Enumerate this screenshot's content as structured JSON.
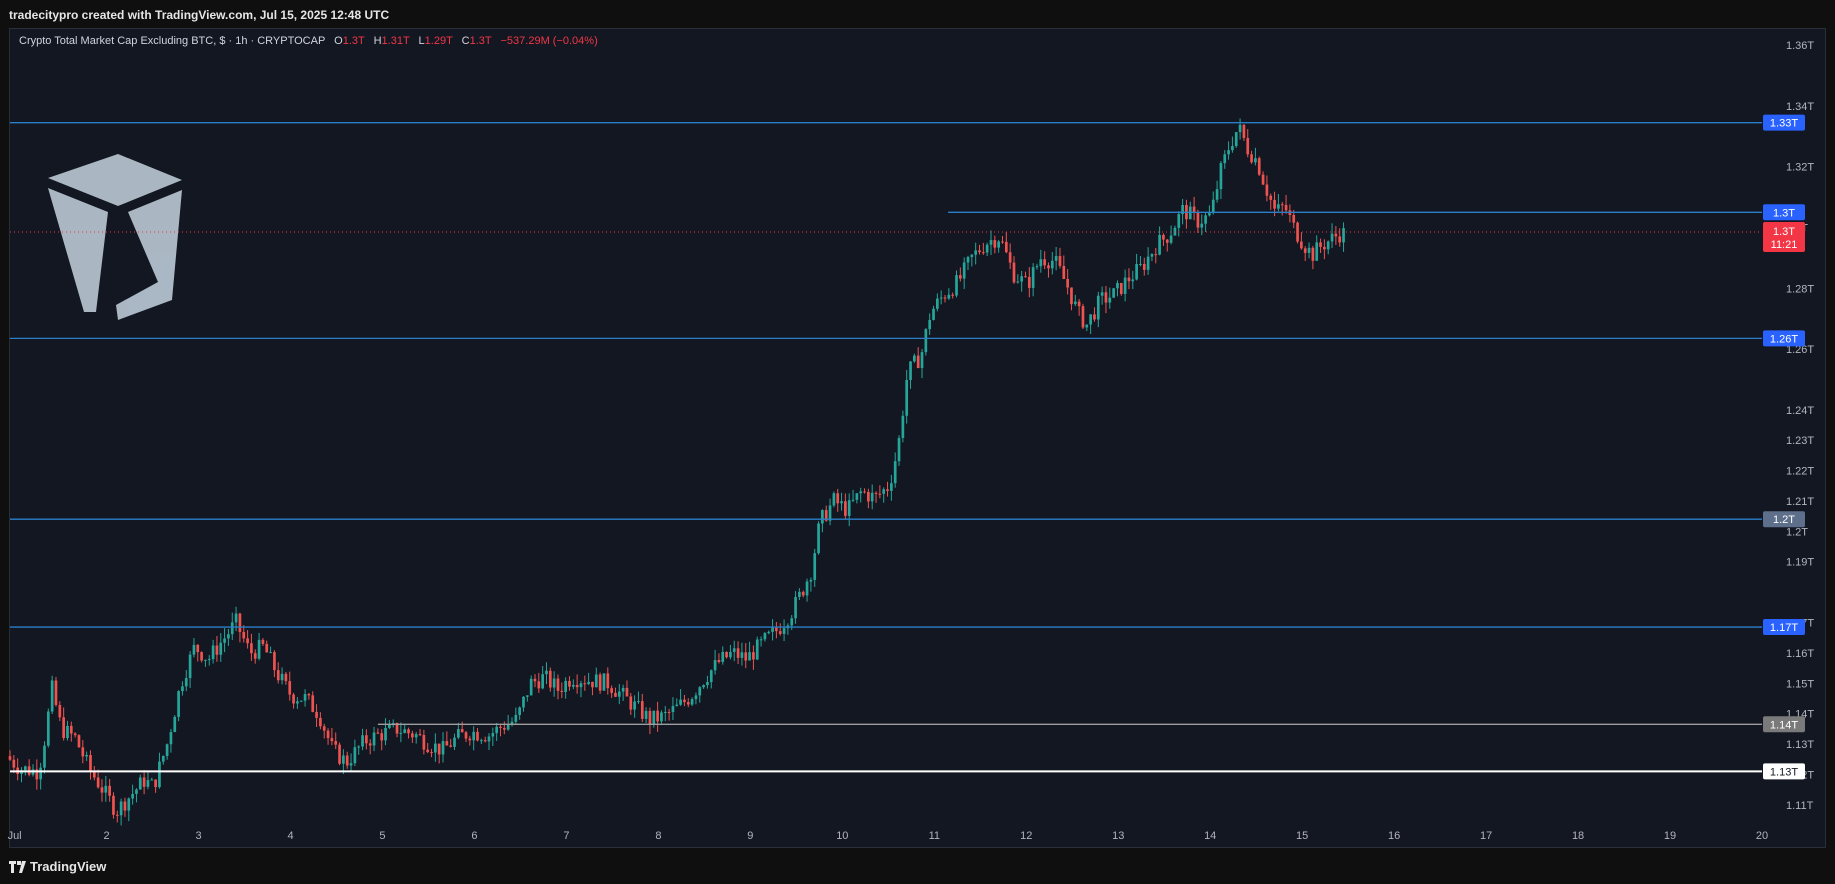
{
  "header": {
    "credit": "tradecitypro created with TradingView.com, Jul 15, 2025 12:48 UTC"
  },
  "legend": {
    "symbol": "Crypto Total Market Cap Excluding BTC, $ · 1h · CRYPTOCAP",
    "open_label": "O",
    "open": "1.3T",
    "high_label": "H",
    "high": "1.31T",
    "low_label": "L",
    "low": "1.29T",
    "close_label": "C",
    "close": "1.3T",
    "change": "−537.29M (−0.04%)"
  },
  "footer": {
    "brand": "TradingView",
    "logo_icon": "tradingview-logo-icon"
  },
  "watermark": {
    "icon": "tradecity-logo-icon"
  },
  "colors": {
    "up": "#26a69a",
    "down": "#ef5350",
    "level": "#2a7fc9",
    "background": "#131722"
  },
  "chart_data": {
    "type": "candlestick",
    "x_tick_labels": [
      "Jul",
      "2",
      "3",
      "4",
      "5",
      "6",
      "7",
      "8",
      "9",
      "10",
      "11",
      "12",
      "13",
      "14",
      "15",
      "16",
      "17",
      "18",
      "19",
      "20"
    ],
    "y_tick_labels": [
      "1.36T",
      "1.34T",
      "1.32T",
      "1.3T",
      "1.28T",
      "1.26T",
      "1.24T",
      "1.23T",
      "1.22T",
      "1.21T",
      "1.2T",
      "1.19T",
      "1.17T",
      "1.16T",
      "1.15T",
      "1.14T",
      "1.13T",
      "1.12T",
      "1.11T"
    ],
    "y_ticks": [
      1.36,
      1.34,
      1.32,
      1.3,
      1.28,
      1.26,
      1.24,
      1.23,
      1.22,
      1.21,
      1.2,
      1.19,
      1.17,
      1.16,
      1.15,
      1.14,
      1.13,
      1.12,
      1.11
    ],
    "ylim": [
      1.105,
      1.365
    ],
    "xlim": [
      0.95,
      20.0
    ],
    "current_price": {
      "label": "1.3T",
      "countdown": "11:21",
      "value": 1.2985,
      "color": "#f23645"
    },
    "levels": [
      {
        "label": "1.33T",
        "value": 1.3345,
        "color": "#2a7fc9",
        "x_start": 0.95,
        "tag_bg": "#2962ff"
      },
      {
        "label": "1.3T",
        "value": 1.305,
        "color": "#2a7fc9",
        "x_start": 11.15,
        "tag_bg": "#2962ff"
      },
      {
        "label": "1.26T",
        "value": 1.2635,
        "color": "#2a7fc9",
        "x_start": 0.95,
        "tag_bg": "#2962ff"
      },
      {
        "label": "1.2T",
        "value": 1.204,
        "color": "#2a7fc9",
        "x_start": 0.95,
        "tag_bg": "#5d6f8a"
      },
      {
        "label": "1.17T",
        "value": 1.1685,
        "color": "#2a7fc9",
        "x_start": 0.95,
        "tag_bg": "#2962ff"
      },
      {
        "label": "1.14T",
        "value": 1.1365,
        "color": "#9e9e9e",
        "x_start": 4.95,
        "tag_bg": "#7a7a7a"
      },
      {
        "label": "1.13T",
        "value": 1.121,
        "color": "#ffffff",
        "x_start": 0.95,
        "tag_bg": "#ffffff"
      }
    ],
    "path_points": [
      [
        0.95,
        1.126
      ],
      [
        1.1,
        1.122
      ],
      [
        1.3,
        1.121
      ],
      [
        1.35,
        1.128
      ],
      [
        1.45,
        1.148
      ],
      [
        1.55,
        1.135
      ],
      [
        1.7,
        1.132
      ],
      [
        1.85,
        1.122
      ],
      [
        2.0,
        1.115
      ],
      [
        2.15,
        1.108
      ],
      [
        2.3,
        1.113
      ],
      [
        2.45,
        1.118
      ],
      [
        2.55,
        1.116
      ],
      [
        2.7,
        1.13
      ],
      [
        2.85,
        1.15
      ],
      [
        3.0,
        1.162
      ],
      [
        3.15,
        1.158
      ],
      [
        3.3,
        1.164
      ],
      [
        3.45,
        1.17
      ],
      [
        3.6,
        1.16
      ],
      [
        3.75,
        1.162
      ],
      [
        3.9,
        1.153
      ],
      [
        4.05,
        1.146
      ],
      [
        4.2,
        1.145
      ],
      [
        4.35,
        1.14
      ],
      [
        4.5,
        1.128
      ],
      [
        4.65,
        1.124
      ],
      [
        4.85,
        1.131
      ],
      [
        5.0,
        1.133
      ],
      [
        5.2,
        1.135
      ],
      [
        5.4,
        1.133
      ],
      [
        5.55,
        1.13
      ],
      [
        5.7,
        1.128
      ],
      [
        5.85,
        1.132
      ],
      [
        6.0,
        1.134
      ],
      [
        6.2,
        1.133
      ],
      [
        6.35,
        1.136
      ],
      [
        6.5,
        1.138
      ],
      [
        6.65,
        1.15
      ],
      [
        6.8,
        1.152
      ],
      [
        6.95,
        1.148
      ],
      [
        7.1,
        1.152
      ],
      [
        7.3,
        1.151
      ],
      [
        7.5,
        1.15
      ],
      [
        7.65,
        1.146
      ],
      [
        7.8,
        1.142
      ],
      [
        7.95,
        1.138
      ],
      [
        8.1,
        1.139
      ],
      [
        8.25,
        1.142
      ],
      [
        8.4,
        1.146
      ],
      [
        8.55,
        1.152
      ],
      [
        8.7,
        1.157
      ],
      [
        8.85,
        1.16
      ],
      [
        9.0,
        1.158
      ],
      [
        9.2,
        1.164
      ],
      [
        9.35,
        1.168
      ],
      [
        9.5,
        1.174
      ],
      [
        9.6,
        1.18
      ],
      [
        9.7,
        1.187
      ],
      [
        9.8,
        1.203
      ],
      [
        9.95,
        1.21
      ],
      [
        10.1,
        1.207
      ],
      [
        10.25,
        1.213
      ],
      [
        10.4,
        1.211
      ],
      [
        10.55,
        1.215
      ],
      [
        10.65,
        1.228
      ],
      [
        10.75,
        1.252
      ],
      [
        10.9,
        1.258
      ],
      [
        11.0,
        1.272
      ],
      [
        11.15,
        1.278
      ],
      [
        11.3,
        1.282
      ],
      [
        11.45,
        1.29
      ],
      [
        11.6,
        1.295
      ],
      [
        11.75,
        1.297
      ],
      [
        11.9,
        1.285
      ],
      [
        12.05,
        1.281
      ],
      [
        12.2,
        1.29
      ],
      [
        12.35,
        1.289
      ],
      [
        12.5,
        1.28
      ],
      [
        12.6,
        1.272
      ],
      [
        12.7,
        1.268
      ],
      [
        12.85,
        1.276
      ],
      [
        13.0,
        1.278
      ],
      [
        13.15,
        1.283
      ],
      [
        13.3,
        1.287
      ],
      [
        13.45,
        1.294
      ],
      [
        13.6,
        1.298
      ],
      [
        13.75,
        1.306
      ],
      [
        13.9,
        1.302
      ],
      [
        14.05,
        1.304
      ],
      [
        14.15,
        1.318
      ],
      [
        14.25,
        1.327
      ],
      [
        14.35,
        1.333
      ],
      [
        14.45,
        1.326
      ],
      [
        14.55,
        1.322
      ],
      [
        14.65,
        1.313
      ],
      [
        14.75,
        1.305
      ],
      [
        14.85,
        1.307
      ],
      [
        14.95,
        1.3
      ],
      [
        15.05,
        1.295
      ],
      [
        15.15,
        1.291
      ],
      [
        15.25,
        1.294
      ],
      [
        15.35,
        1.296
      ],
      [
        15.45,
        1.298
      ]
    ]
  }
}
